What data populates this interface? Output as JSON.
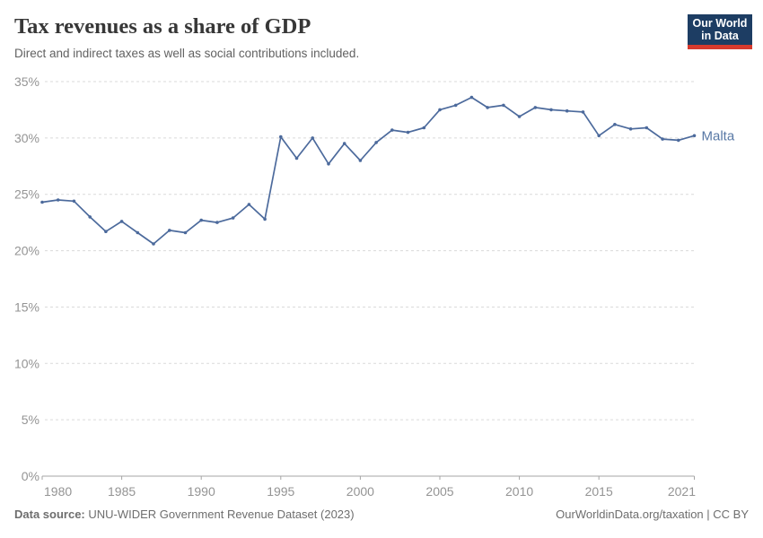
{
  "header": {
    "title": "Tax revenues as a share of GDP",
    "subtitle": "Direct and indirect taxes as well as social contributions included."
  },
  "logo": {
    "line1": "Our World",
    "line2": "in Data",
    "bg_color": "#1d3d63",
    "bar_color": "#d73a2d"
  },
  "chart_data": {
    "type": "line",
    "title": "Tax revenues as a share of GDP",
    "xlabel": "",
    "ylabel": "",
    "xlim": [
      1980,
      2021
    ],
    "ylim": [
      0,
      35
    ],
    "grid": "horizontal-dashed",
    "legend_position": "end-of-line-label",
    "x": [
      1980,
      1981,
      1982,
      1983,
      1984,
      1985,
      1986,
      1987,
      1988,
      1989,
      1990,
      1991,
      1992,
      1993,
      1994,
      1995,
      1996,
      1997,
      1998,
      1999,
      2000,
      2001,
      2002,
      2003,
      2004,
      2005,
      2006,
      2007,
      2008,
      2009,
      2010,
      2011,
      2012,
      2013,
      2014,
      2015,
      2016,
      2017,
      2018,
      2019,
      2020,
      2021
    ],
    "series": [
      {
        "name": "Malta",
        "color": "#4c6a9c",
        "values": [
          24.3,
          24.5,
          24.4,
          23.0,
          21.7,
          22.6,
          21.6,
          20.6,
          21.8,
          21.6,
          22.7,
          22.5,
          22.9,
          24.1,
          22.8,
          30.1,
          28.2,
          30.0,
          27.7,
          29.5,
          28.0,
          29.6,
          30.7,
          30.5,
          30.9,
          32.5,
          32.9,
          33.6,
          32.7,
          32.9,
          31.9,
          32.7,
          32.5,
          32.4,
          32.3,
          30.2,
          31.2,
          30.8,
          30.9,
          29.9,
          29.8,
          30.2
        ]
      }
    ],
    "yticks": [
      {
        "value": 0,
        "label": "0%"
      },
      {
        "value": 5,
        "label": "5%"
      },
      {
        "value": 10,
        "label": "10%"
      },
      {
        "value": 15,
        "label": "15%"
      },
      {
        "value": 20,
        "label": "20%"
      },
      {
        "value": 25,
        "label": "25%"
      },
      {
        "value": 30,
        "label": "30%"
      },
      {
        "value": 35,
        "label": "35%"
      }
    ],
    "xticks": [
      {
        "value": 1980,
        "label": "1980"
      },
      {
        "value": 1985,
        "label": "1985"
      },
      {
        "value": 1990,
        "label": "1990"
      },
      {
        "value": 1995,
        "label": "1995"
      },
      {
        "value": 2000,
        "label": "2000"
      },
      {
        "value": 2005,
        "label": "2005"
      },
      {
        "value": 2010,
        "label": "2010"
      },
      {
        "value": 2015,
        "label": "2015"
      },
      {
        "value": 2021,
        "label": "2021"
      }
    ]
  },
  "footer": {
    "source_label": "Data source:",
    "source_text": " UNU-WIDER Government Revenue Dataset (2023)",
    "credit": "OurWorldinData.org/taxation | CC BY"
  },
  "colors": {
    "line": "#4c6a9c",
    "series_label": "#5878a5",
    "grid": "#dadada",
    "axis": "#a5a5a5",
    "tick_text": "#949494",
    "title": "#373737",
    "subtitle": "#616161",
    "footer": "#6e6e6e"
  }
}
